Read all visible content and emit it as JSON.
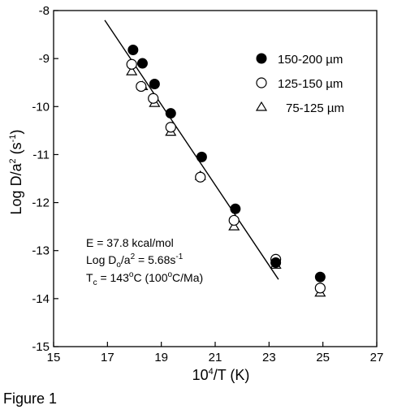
{
  "figure_caption": "Figure 1",
  "chart_data": {
    "type": "scatter",
    "xlabel_base": "10",
    "xlabel_sup": "4",
    "xlabel_rest": "/T (K)",
    "ylabel_main": "Log D/a",
    "ylabel_sup1": "2",
    "ylabel_mid": " (s",
    "ylabel_sup2": "-1",
    "ylabel_end": ")",
    "xlim": [
      15,
      27
    ],
    "ylim": [
      -15,
      -8
    ],
    "xticks": [
      15,
      17,
      19,
      21,
      23,
      25,
      27
    ],
    "xtick_labels": [
      "15",
      "17",
      "19",
      "21",
      "23",
      "25",
      "27"
    ],
    "yticks": [
      -8,
      -9,
      -10,
      -11,
      -12,
      -13,
      -14,
      -15
    ],
    "ytick_labels": [
      "-8",
      "-9",
      "-10",
      "-11",
      "-12",
      "-13",
      "-14",
      "-15"
    ],
    "grid": false,
    "legend_position": "top-right",
    "series": [
      {
        "name": "150-200 µm",
        "marker": "filled-circle",
        "x": [
          17.95,
          18.3,
          18.75,
          19.35,
          20.5,
          21.75,
          23.25,
          24.9
        ],
        "y": [
          -8.82,
          -9.1,
          -9.53,
          -10.14,
          -11.05,
          -12.13,
          -13.25,
          -13.55
        ]
      },
      {
        "name": "125-150 µm",
        "marker": "open-circle",
        "x": [
          17.9,
          18.25,
          18.7,
          19.35,
          20.45,
          21.7,
          23.25,
          24.9
        ],
        "y": [
          -9.12,
          -9.58,
          -9.83,
          -10.43,
          -11.47,
          -12.37,
          -13.18,
          -13.78
        ]
      },
      {
        "name": "75-125 µm",
        "marker": "open-triangle",
        "x": [
          17.9,
          18.3,
          18.75,
          19.35,
          20.45,
          21.7,
          23.25,
          24.9
        ],
        "y": [
          -9.27,
          -9.58,
          -9.93,
          -10.53,
          -11.45,
          -12.5,
          -13.3,
          -13.88
        ]
      }
    ],
    "fit_line": {
      "x": [
        16.9,
        23.35
      ],
      "y": [
        -8.2,
        -13.6
      ]
    },
    "annotations": [
      {
        "main": "E = 37.8 kcal/mol"
      },
      {
        "main": "Log D",
        "sub": "o",
        "mid": "/a",
        "sup": "2",
        "mid2": " = 5.68s",
        "sup2": "-1"
      },
      {
        "main": "T",
        "sub": "c",
        "mid": " = 143",
        "sup": "o",
        "mid2": "C (100",
        "sup2": "o",
        "end": "C/Ma)"
      }
    ]
  }
}
